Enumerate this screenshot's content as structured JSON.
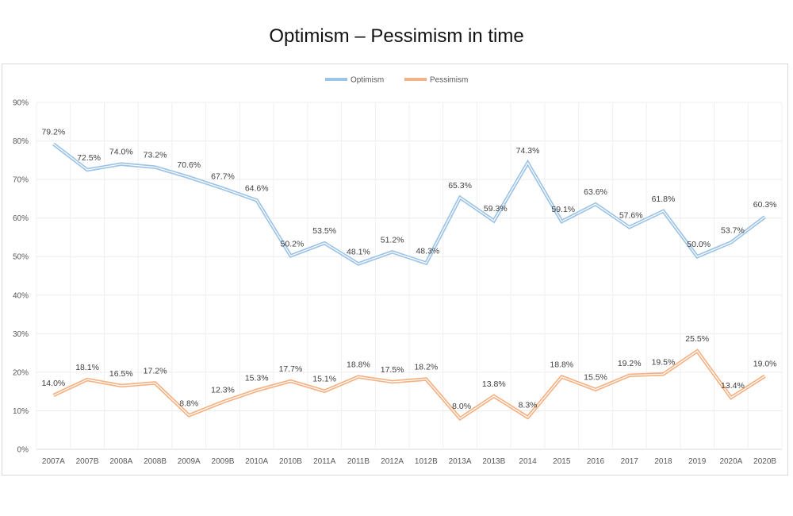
{
  "chart_data": {
    "type": "line",
    "title": "Optimism – Pessimism in time",
    "xlabel": "",
    "ylabel": "",
    "ylim": [
      0,
      90
    ],
    "yticks": [
      "0%",
      "10%",
      "20%",
      "30%",
      "40%",
      "50%",
      "60%",
      "70%",
      "80%",
      "90%"
    ],
    "ytick_values": [
      0,
      10,
      20,
      30,
      40,
      50,
      60,
      70,
      80,
      90
    ],
    "grid": true,
    "legend_position": "top-center",
    "categories": [
      "2007A",
      "2007B",
      "2008A",
      "2008B",
      "2009A",
      "2009B",
      "2010A",
      "2010B",
      "2011A",
      "2011B",
      "2012A",
      "1012B",
      "2013A",
      "2013B",
      "2014",
      "2015",
      "2016",
      "2017",
      "2018",
      "2019",
      "2020A",
      "2020B"
    ],
    "series": [
      {
        "name": "Optimism",
        "color": "#9dc3e6",
        "values": [
          79.2,
          72.5,
          74.0,
          73.2,
          70.6,
          67.7,
          64.6,
          50.2,
          53.5,
          48.1,
          51.2,
          48.3,
          65.3,
          59.3,
          74.3,
          59.1,
          63.6,
          57.6,
          61.8,
          50.0,
          53.7,
          60.3
        ],
        "labels": [
          "79.2%",
          "72.5%",
          "74.0%",
          "73.2%",
          "70.6%",
          "67.7%",
          "64.6%",
          "50.2%",
          "53.5%",
          "48.1%",
          "51.2%",
          "48.3%",
          "65.3%",
          "59.3%",
          "74.3%",
          "59.1%",
          "63.6%",
          "57.6%",
          "61.8%",
          "50.0%",
          "53.7%",
          "60.3%"
        ]
      },
      {
        "name": "Pessimism",
        "color": "#f4b183",
        "values": [
          14.0,
          18.1,
          16.5,
          17.2,
          8.8,
          12.3,
          15.3,
          17.7,
          15.1,
          18.8,
          17.5,
          18.2,
          8.0,
          13.8,
          8.3,
          18.8,
          15.5,
          19.2,
          19.5,
          25.5,
          13.4,
          19.0
        ],
        "labels": [
          "14.0%",
          "18.1%",
          "16.5%",
          "17.2%",
          "8.8%",
          "12.3%",
          "15.3%",
          "17.7%",
          "15.1%",
          "18.8%",
          "17.5%",
          "18.2%",
          "8.0%",
          "13.8%",
          "8.3%",
          "18.8%",
          "15.5%",
          "19.2%",
          "19.5%",
          "25.5%",
          "13.4%",
          "19.0%"
        ]
      }
    ]
  }
}
